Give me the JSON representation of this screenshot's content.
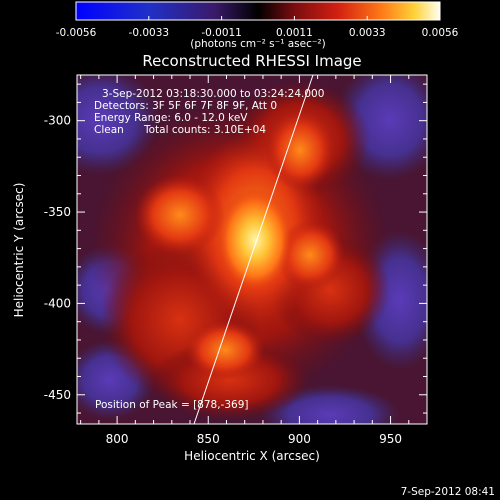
{
  "colorbar": {
    "ticks": [
      "-0.0056",
      "-0.0033",
      "-0.0011",
      "0.0011",
      "0.0033",
      "0.0056"
    ],
    "units_text": "(photons cm⁻² s⁻¹ asec⁻²)",
    "min": -0.0056,
    "max": 0.0056
  },
  "title": "Reconstructed RHESSI Image",
  "overlay": {
    "time_range": "3-Sep-2012 03:18:30.000 to 03:24:24.000",
    "detectors": "Detectors: 3F 5F 6F 7F 8F 9F, Att 0",
    "energy": "Energy Range: 6.0 - 12.0 keV",
    "clean": "Clean",
    "counts": "Total counts: 3.10E+04",
    "peak": "Position of Peak = [878,-369]"
  },
  "axes": {
    "xlabel": "Heliocentric X (arcsec)",
    "ylabel": "Heliocentric Y (arcsec)",
    "xlim": [
      778,
      970
    ],
    "ylim": [
      -466,
      -275
    ],
    "xticks": [
      800,
      850,
      900,
      950
    ],
    "yticks": [
      -300,
      -350,
      -400,
      -450
    ]
  },
  "peak": {
    "x": 878,
    "y": -369
  },
  "footer": {
    "date": "7-Sep-2012 08:41"
  },
  "colors": {
    "background": "#000000",
    "foreground": "#ffffff"
  }
}
